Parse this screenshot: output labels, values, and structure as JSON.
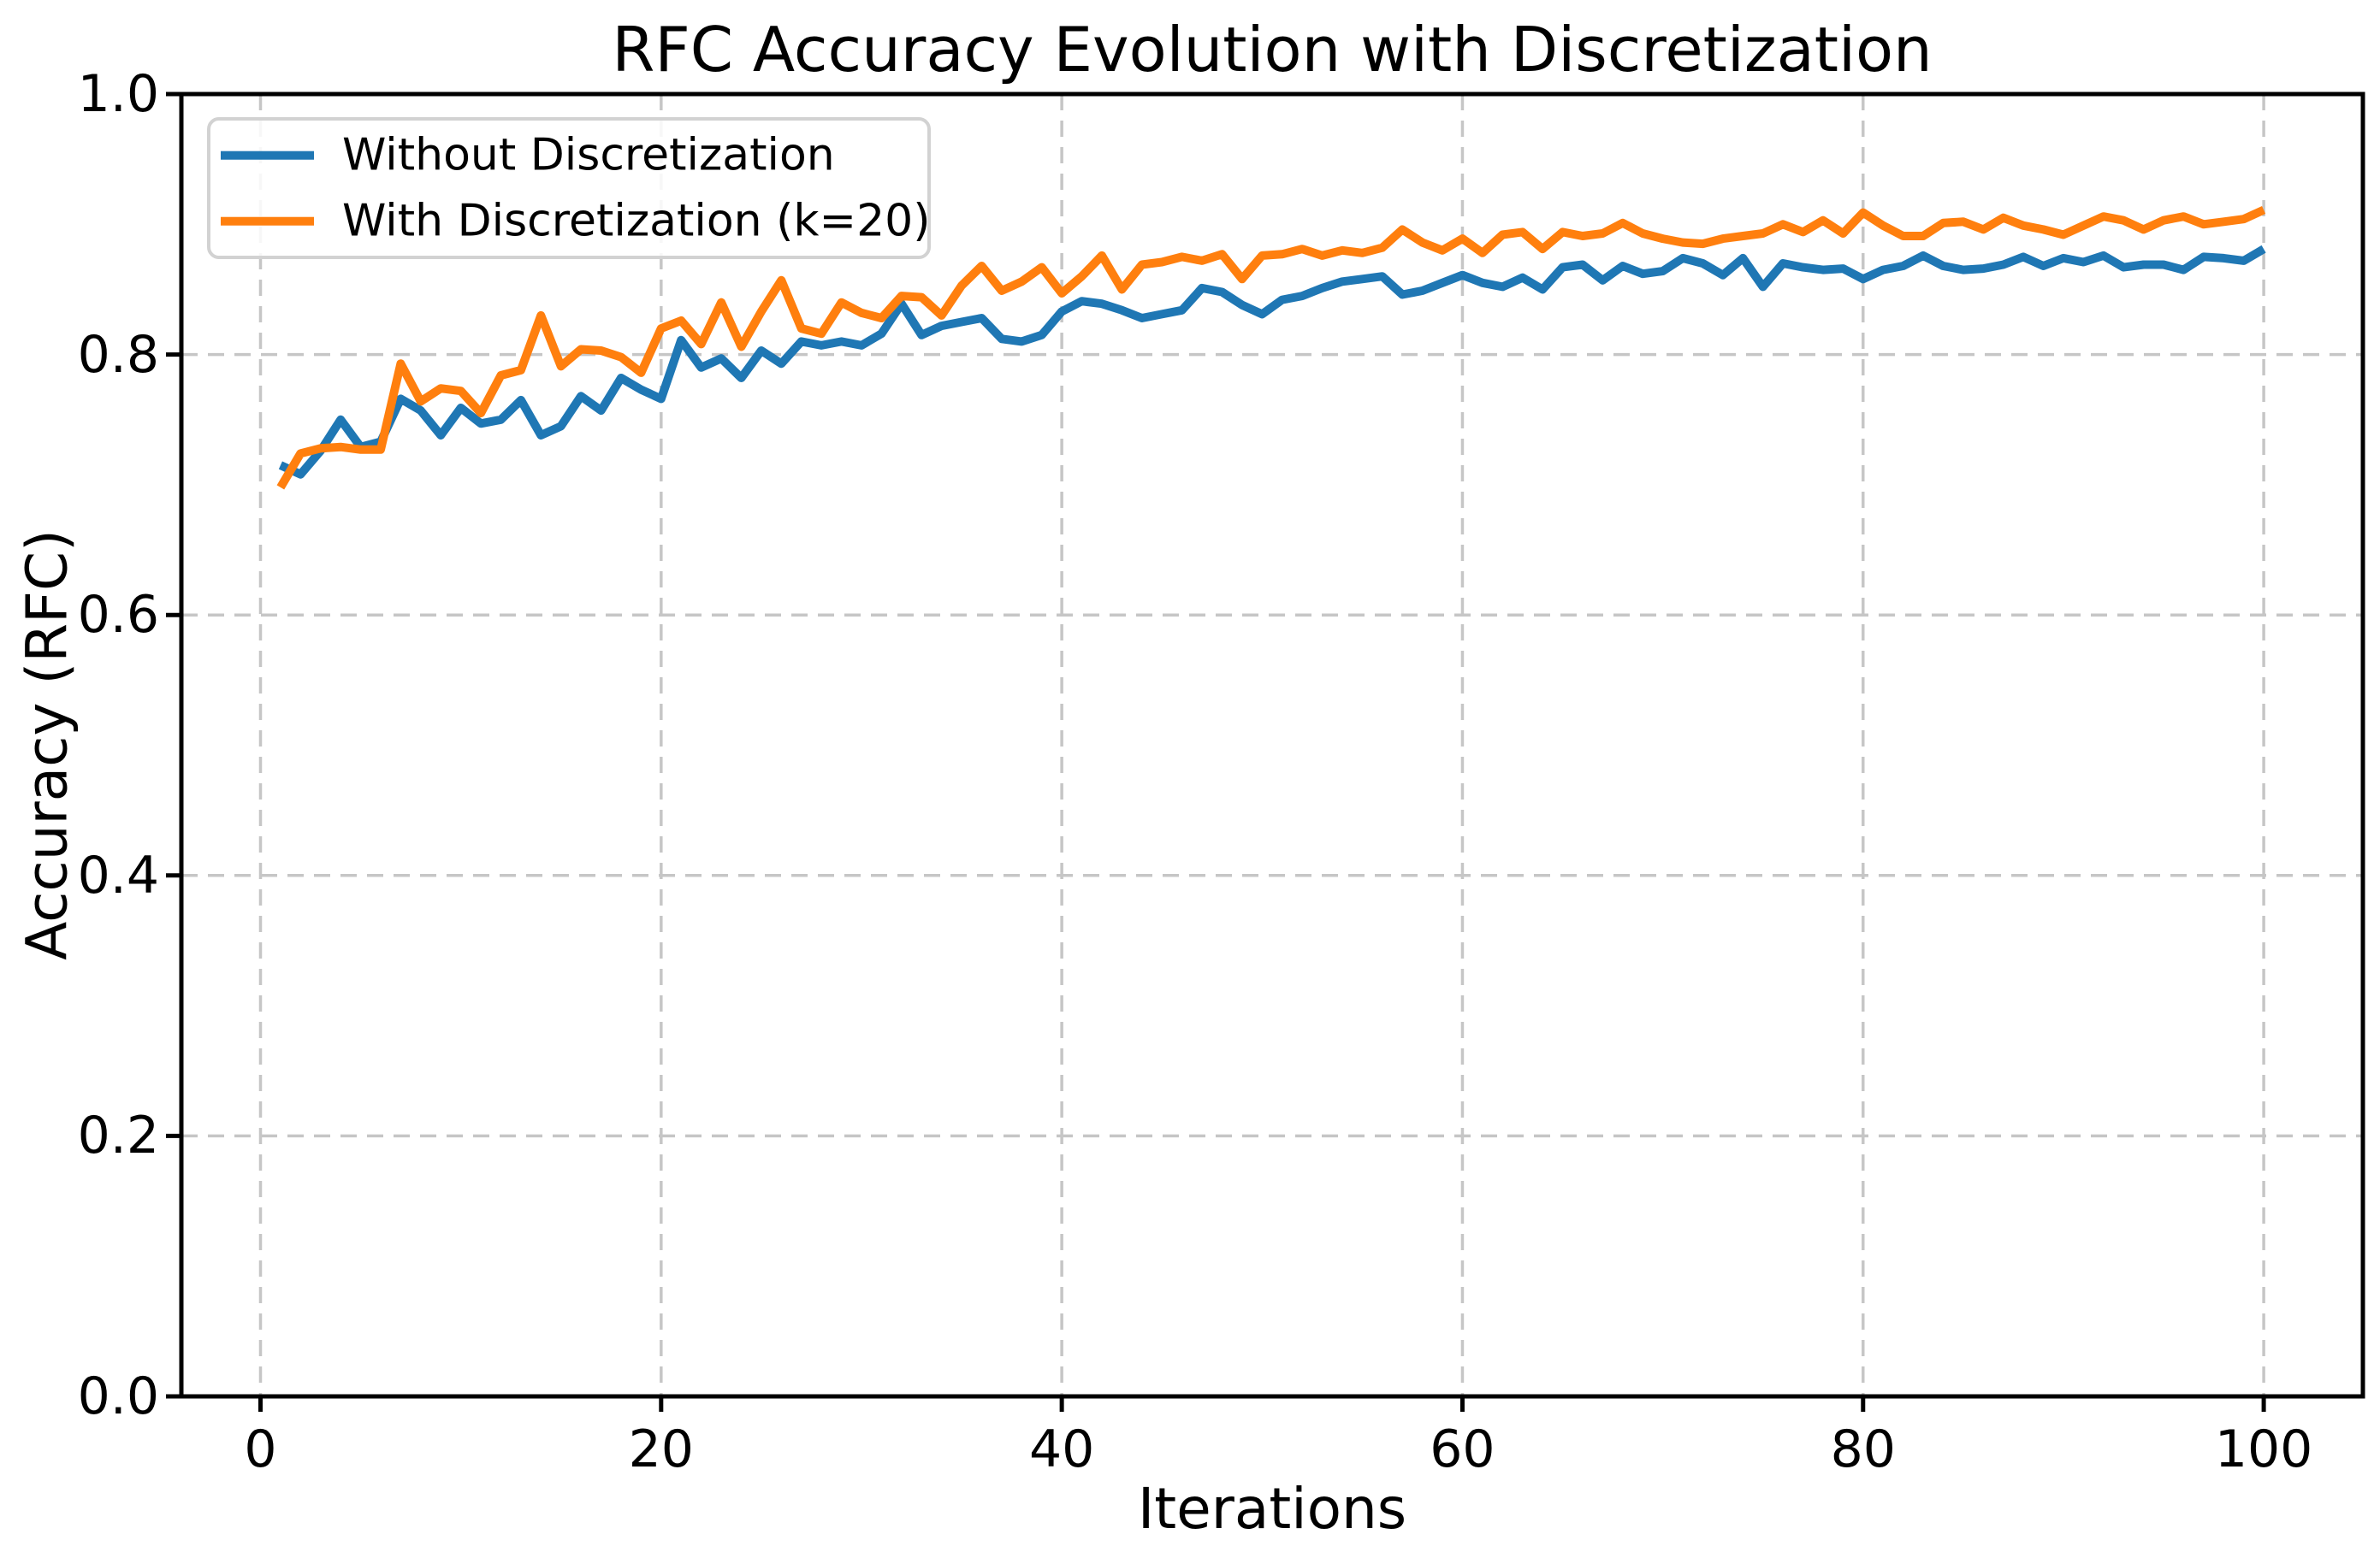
{
  "figure": {
    "background": "#ffffff",
    "spine_color": "#000000",
    "tick_color": "#000000"
  },
  "chart_data": {
    "type": "line",
    "title": "RFC Accuracy Evolution with Discretization",
    "xlabel": "Iterations",
    "ylabel": "Accuracy (RFC)",
    "xlim": [
      -3.95,
      104.95
    ],
    "ylim": [
      0,
      1
    ],
    "x_start": 1,
    "grid": {
      "enabled": true,
      "style": "dashed",
      "color": "#c6c6c6",
      "dash": "19 12",
      "width": 3.5
    },
    "legend": {
      "position": "upper-left",
      "border_color": "#d2d2d2"
    },
    "xticks": {
      "values": [
        0,
        20,
        40,
        60,
        80,
        100
      ],
      "labels": [
        "0",
        "20",
        "40",
        "60",
        "80",
        "100"
      ]
    },
    "yticks": {
      "values": [
        0,
        0.2,
        0.4,
        0.6,
        0.8,
        1.0
      ],
      "labels": [
        "0.0",
        "0.2",
        "0.4",
        "0.6",
        "0.8",
        "1.0"
      ]
    },
    "series": [
      {
        "name": "Without Discretization",
        "color": "#1f77b4",
        "line_width": 10,
        "values": [
          0.715,
          0.708,
          0.726,
          0.75,
          0.729,
          0.733,
          0.766,
          0.757,
          0.738,
          0.759,
          0.747,
          0.75,
          0.765,
          0.738,
          0.745,
          0.768,
          0.757,
          0.782,
          0.773,
          0.766,
          0.811,
          0.79,
          0.797,
          0.782,
          0.803,
          0.793,
          0.81,
          0.807,
          0.81,
          0.807,
          0.816,
          0.839,
          0.815,
          0.822,
          0.825,
          0.828,
          0.812,
          0.81,
          0.815,
          0.833,
          0.841,
          0.839,
          0.834,
          0.828,
          0.831,
          0.834,
          0.851,
          0.848,
          0.838,
          0.831,
          0.842,
          0.845,
          0.851,
          0.856,
          0.858,
          0.86,
          0.846,
          0.849,
          0.855,
          0.861,
          0.855,
          0.852,
          0.859,
          0.85,
          0.867,
          0.869,
          0.857,
          0.868,
          0.862,
          0.864,
          0.874,
          0.87,
          0.861,
          0.874,
          0.852,
          0.87,
          0.867,
          0.865,
          0.866,
          0.858,
          0.865,
          0.868,
          0.876,
          0.868,
          0.865,
          0.866,
          0.869,
          0.875,
          0.868,
          0.874,
          0.871,
          0.876,
          0.867,
          0.869,
          0.869,
          0.865,
          0.875,
          0.874,
          0.872,
          0.881
        ]
      },
      {
        "name": "With Discretization (k=20)",
        "color": "#ff7f0e",
        "line_width": 10,
        "values": [
          0.698,
          0.724,
          0.728,
          0.729,
          0.727,
          0.727,
          0.793,
          0.764,
          0.774,
          0.772,
          0.755,
          0.784,
          0.788,
          0.83,
          0.791,
          0.804,
          0.803,
          0.798,
          0.786,
          0.82,
          0.826,
          0.808,
          0.84,
          0.806,
          0.833,
          0.857,
          0.82,
          0.816,
          0.84,
          0.832,
          0.828,
          0.845,
          0.844,
          0.83,
          0.853,
          0.868,
          0.849,
          0.856,
          0.867,
          0.847,
          0.86,
          0.876,
          0.85,
          0.869,
          0.871,
          0.875,
          0.872,
          0.877,
          0.858,
          0.876,
          0.877,
          0.881,
          0.876,
          0.88,
          0.878,
          0.882,
          0.896,
          0.886,
          0.88,
          0.889,
          0.878,
          0.892,
          0.894,
          0.881,
          0.894,
          0.891,
          0.893,
          0.901,
          0.893,
          0.889,
          0.886,
          0.885,
          0.889,
          0.891,
          0.893,
          0.9,
          0.894,
          0.903,
          0.893,
          0.909,
          0.899,
          0.891,
          0.891,
          0.901,
          0.902,
          0.896,
          0.905,
          0.899,
          0.896,
          0.892,
          0.899,
          0.906,
          0.903,
          0.896,
          0.903,
          0.906,
          0.9,
          0.902,
          0.904,
          0.911
        ]
      }
    ]
  }
}
